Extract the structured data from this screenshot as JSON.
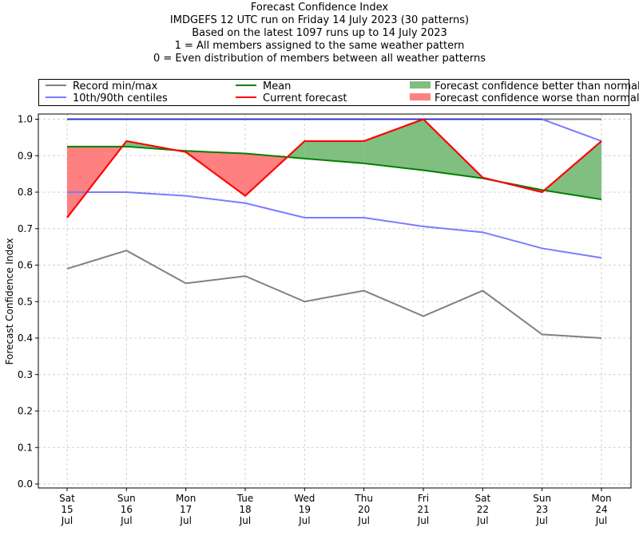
{
  "chart_data": {
    "type": "line",
    "title": "Forecast Confidence Index",
    "subtitle_lines": [
      "IMDGEFS 12 UTC run on Friday 14 July 2023 (30 patterns)",
      "Based on the latest 1097 runs up to 14 July 2023",
      "1 = All members assigned to the same weather pattern",
      "0 = Even distribution of members between all weather patterns"
    ],
    "xlabel": "",
    "ylabel": "Forecast Confidence Index",
    "ylim": [
      0.0,
      1.0
    ],
    "yticks": [
      "0.0",
      "0.1",
      "0.2",
      "0.3",
      "0.4",
      "0.5",
      "0.6",
      "0.7",
      "0.8",
      "0.9",
      "1.0"
    ],
    "grid": true,
    "legend_position": "top",
    "categories": [
      {
        "day": "Sat",
        "date": "15",
        "month": "Jul"
      },
      {
        "day": "Sun",
        "date": "16",
        "month": "Jul"
      },
      {
        "day": "Mon",
        "date": "17",
        "month": "Jul"
      },
      {
        "day": "Tue",
        "date": "18",
        "month": "Jul"
      },
      {
        "day": "Wed",
        "date": "19",
        "month": "Jul"
      },
      {
        "day": "Thu",
        "date": "20",
        "month": "Jul"
      },
      {
        "day": "Fri",
        "date": "21",
        "month": "Jul"
      },
      {
        "day": "Sat",
        "date": "22",
        "month": "Jul"
      },
      {
        "day": "Sun",
        "date": "23",
        "month": "Jul"
      },
      {
        "day": "Mon",
        "date": "24",
        "month": "Jul"
      }
    ],
    "series": [
      {
        "name": "Record max",
        "color": "#808080",
        "values": [
          1.0,
          1.0,
          1.0,
          1.0,
          1.0,
          1.0,
          1.0,
          1.0,
          1.0,
          1.0
        ]
      },
      {
        "name": "Record min",
        "color": "#808080",
        "values": [
          0.59,
          0.64,
          0.55,
          0.57,
          0.5,
          0.53,
          0.46,
          0.53,
          0.41,
          0.4
        ]
      },
      {
        "name": "90th centile",
        "color": "#7b7bff",
        "values": [
          1.0,
          1.0,
          1.0,
          1.0,
          1.0,
          1.0,
          1.0,
          1.0,
          1.0,
          0.94
        ]
      },
      {
        "name": "10th centile",
        "color": "#7b7bff",
        "values": [
          0.8,
          0.8,
          0.79,
          0.77,
          0.73,
          0.73,
          0.706,
          0.69,
          0.646,
          0.62
        ]
      },
      {
        "name": "Mean",
        "color": "#008000",
        "values": [
          0.925,
          0.925,
          0.913,
          0.906,
          0.892,
          0.879,
          0.86,
          0.838,
          0.806,
          0.78
        ]
      },
      {
        "name": "Current forecast",
        "color": "#ff0000",
        "values": [
          0.73,
          0.94,
          0.91,
          0.79,
          0.94,
          0.94,
          1.0,
          0.84,
          0.8,
          0.94
        ]
      }
    ],
    "legend": [
      {
        "label": "Record min/max",
        "kind": "line",
        "color": "#808080"
      },
      {
        "label": "10th/90th centiles",
        "kind": "line",
        "color": "#7b7bff"
      },
      {
        "label": "Mean",
        "kind": "line",
        "color": "#008000"
      },
      {
        "label": "Current forecast",
        "kind": "line",
        "color": "#ff0000"
      },
      {
        "label": "Forecast confidence better than normal",
        "kind": "patch",
        "color": "#80bf80"
      },
      {
        "label": "Forecast confidence worse than normal",
        "kind": "patch",
        "color": "#ff8080"
      }
    ],
    "fill_colors": {
      "better": "#80bf80",
      "worse": "#ff8080"
    },
    "max_overlap_color": "#3333bb"
  }
}
